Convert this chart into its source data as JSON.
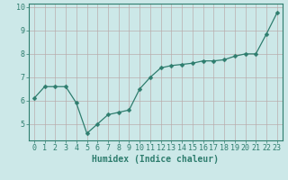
{
  "x": [
    0,
    1,
    2,
    3,
    4,
    5,
    6,
    7,
    8,
    9,
    10,
    11,
    12,
    13,
    14,
    15,
    16,
    17,
    18,
    19,
    20,
    21,
    22,
    23
  ],
  "y": [
    6.1,
    6.6,
    6.6,
    6.6,
    5.9,
    4.6,
    5.0,
    5.4,
    5.5,
    5.6,
    6.5,
    7.0,
    7.4,
    7.5,
    7.55,
    7.6,
    7.7,
    7.7,
    7.75,
    7.9,
    8.0,
    8.0,
    8.85,
    9.75
  ],
  "line_color": "#2e7d6e",
  "marker": "D",
  "marker_size": 2.5,
  "bg_color": "#cce8e8",
  "grid_color": "#b8a8a8",
  "xlabel": "Humidex (Indice chaleur)",
  "ylabel": "",
  "xlim": [
    -0.5,
    23.5
  ],
  "ylim": [
    4.3,
    10.15
  ],
  "yticks": [
    5,
    6,
    7,
    8,
    9,
    10
  ],
  "xticks": [
    0,
    1,
    2,
    3,
    4,
    5,
    6,
    7,
    8,
    9,
    10,
    11,
    12,
    13,
    14,
    15,
    16,
    17,
    18,
    19,
    20,
    21,
    22,
    23
  ],
  "font_color": "#2e7d6e",
  "tick_color": "#2e7d6e",
  "axis_color": "#2e7d6e",
  "label_fontsize": 7.0,
  "tick_fontsize": 6.0
}
